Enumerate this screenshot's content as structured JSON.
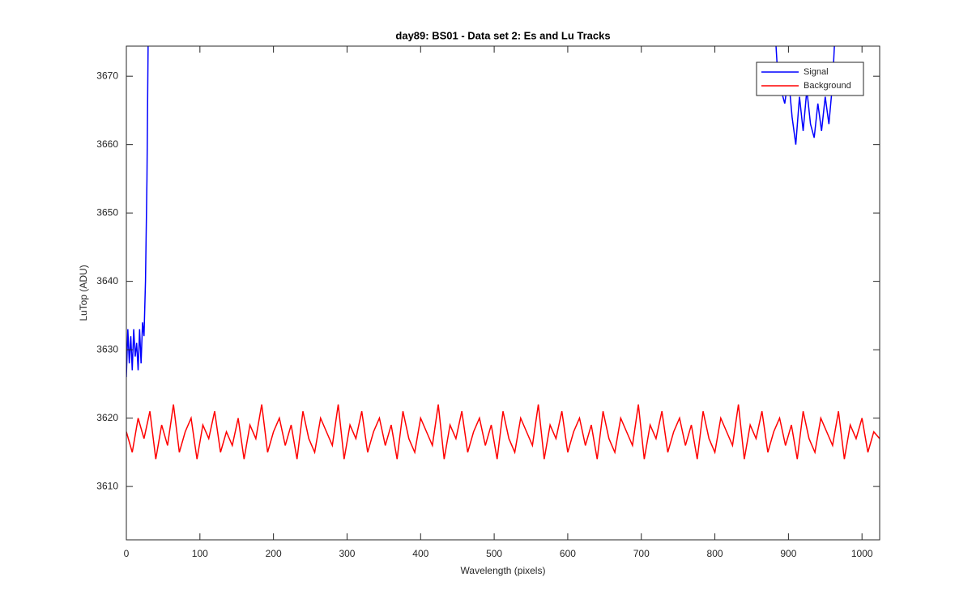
{
  "chart_data": {
    "type": "line",
    "title": "day89: BS01 - Data set 2: Es and Lu Tracks",
    "x_label": "Wavelength (pixels)",
    "y_label": "LuTop (ADU)",
    "xlim": [
      0,
      1024
    ],
    "ylim": [
      3602.2,
      3674.4
    ],
    "xticks": [
      0,
      100,
      200,
      300,
      400,
      500,
      600,
      700,
      800,
      900,
      1000
    ],
    "yticks": [
      3610,
      3620,
      3630,
      3640,
      3650,
      3660,
      3670
    ],
    "legend": "upper right",
    "series": [
      {
        "name": "Signal",
        "color": "#0000ff",
        "x": [
          0,
          2,
          4,
          6,
          8,
          10,
          12,
          14,
          16,
          18,
          20,
          22,
          24,
          26,
          28,
          30,
          500,
          880,
          885,
          890,
          895,
          900,
          905,
          910,
          915,
          920,
          925,
          930,
          935,
          940,
          945,
          950,
          955,
          960,
          965
        ],
        "values": [
          3626,
          3633,
          3628,
          3632,
          3627,
          3633,
          3629,
          3631,
          3627,
          3633,
          3628,
          3634,
          3632,
          3640,
          3655,
          3680,
          null,
          3680,
          3671,
          3668,
          3666,
          3670,
          3664,
          3660,
          3667,
          3662,
          3668,
          3663,
          3661,
          3666,
          3662,
          3667,
          3663,
          3669,
          3680
        ]
      },
      {
        "name": "Background",
        "color": "#ff0000",
        "x": [
          0,
          8,
          16,
          24,
          32,
          40,
          48,
          56,
          64,
          72,
          80,
          88,
          96,
          104,
          112,
          120,
          128,
          136,
          144,
          152,
          160,
          168,
          176,
          184,
          192,
          200,
          208,
          216,
          224,
          232,
          240,
          248,
          256,
          264,
          272,
          280,
          288,
          296,
          304,
          312,
          320,
          328,
          336,
          344,
          352,
          360,
          368,
          376,
          384,
          392,
          400,
          408,
          416,
          424,
          432,
          440,
          448,
          456,
          464,
          472,
          480,
          488,
          496,
          504,
          512,
          520,
          528,
          536,
          544,
          552,
          560,
          568,
          576,
          584,
          592,
          600,
          608,
          616,
          624,
          632,
          640,
          648,
          656,
          664,
          672,
          680,
          688,
          696,
          704,
          712,
          720,
          728,
          736,
          744,
          752,
          760,
          768,
          776,
          784,
          792,
          800,
          808,
          816,
          824,
          832,
          840,
          848,
          856,
          864,
          872,
          880,
          888,
          896,
          904,
          912,
          920,
          928,
          936,
          944,
          952,
          960,
          968,
          976,
          984,
          992,
          1000,
          1008,
          1016,
          1024
        ],
        "values": [
          3618,
          3615,
          3620,
          3617,
          3621,
          3614,
          3619,
          3616,
          3622,
          3615,
          3618,
          3620,
          3614,
          3619,
          3617,
          3621,
          3615,
          3618,
          3616,
          3620,
          3614,
          3619,
          3617,
          3622,
          3615,
          3618,
          3620,
          3616,
          3619,
          3614,
          3621,
          3617,
          3615,
          3620,
          3618,
          3616,
          3622,
          3614,
          3619,
          3617,
          3621,
          3615,
          3618,
          3620,
          3616,
          3619,
          3614,
          3621,
          3617,
          3615,
          3620,
          3618,
          3616,
          3622,
          3614,
          3619,
          3617,
          3621,
          3615,
          3618,
          3620,
          3616,
          3619,
          3614,
          3621,
          3617,
          3615,
          3620,
          3618,
          3616,
          3622,
          3614,
          3619,
          3617,
          3621,
          3615,
          3618,
          3620,
          3616,
          3619,
          3614,
          3621,
          3617,
          3615,
          3620,
          3618,
          3616,
          3622,
          3614,
          3619,
          3617,
          3621,
          3615,
          3618,
          3620,
          3616,
          3619,
          3614,
          3621,
          3617,
          3615,
          3620,
          3618,
          3616,
          3622,
          3614,
          3619,
          3617,
          3621,
          3615,
          3618,
          3620,
          3616,
          3619,
          3614,
          3621,
          3617,
          3615,
          3620,
          3618,
          3616,
          3621,
          3614,
          3619,
          3617,
          3620,
          3615,
          3618,
          3617
        ]
      }
    ]
  }
}
